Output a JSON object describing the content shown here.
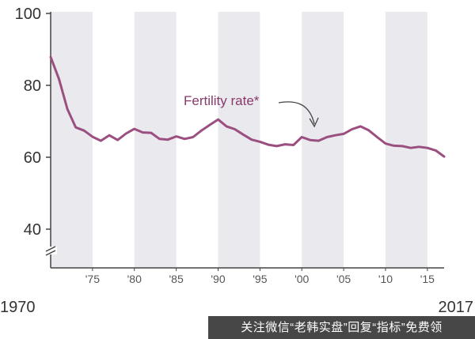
{
  "chart_data": {
    "type": "line",
    "title": "",
    "xlabel": "",
    "ylabel": "",
    "xlim": [
      1970,
      2017
    ],
    "ylim": [
      30,
      100
    ],
    "y_ticks": [
      40,
      60,
      80,
      100
    ],
    "x_ticks": [
      {
        "year": 1975,
        "label": "'75"
      },
      {
        "year": 1980,
        "label": "'80"
      },
      {
        "year": 1985,
        "label": "'85"
      },
      {
        "year": 1990,
        "label": "'90"
      },
      {
        "year": 1995,
        "label": "'95"
      },
      {
        "year": 2000,
        "label": "'00"
      },
      {
        "year": 2005,
        "label": "'05"
      },
      {
        "year": 2010,
        "label": "'10"
      },
      {
        "year": 2015,
        "label": "'15"
      }
    ],
    "x_end_labels": {
      "start": "1970",
      "end": "2017"
    },
    "shaded_bands": [
      [
        1970,
        1975
      ],
      [
        1980,
        1985
      ],
      [
        1990,
        1995
      ],
      [
        2000,
        2005
      ],
      [
        2010,
        2015
      ]
    ],
    "axis_break": true,
    "series": [
      {
        "name": "Fertility rate*",
        "color": "#9b4f80",
        "x": [
          1970,
          1971,
          1972,
          1973,
          1974,
          1975,
          1976,
          1977,
          1978,
          1979,
          1980,
          1981,
          1982,
          1983,
          1984,
          1985,
          1986,
          1987,
          1988,
          1989,
          1990,
          1991,
          1992,
          1993,
          1994,
          1995,
          1996,
          1997,
          1998,
          1999,
          2000,
          2001,
          2002,
          2003,
          2004,
          2005,
          2006,
          2007,
          2008,
          2009,
          2010,
          2011,
          2012,
          2013,
          2014,
          2015,
          2016,
          2017
        ],
        "values": [
          87.9,
          81.7,
          73.4,
          68.3,
          67.4,
          65.7,
          64.6,
          66.1,
          64.8,
          66.6,
          67.9,
          66.9,
          66.8,
          65.1,
          64.9,
          65.8,
          65.1,
          65.6,
          67.4,
          69.0,
          70.5,
          68.6,
          67.8,
          66.3,
          64.9,
          64.3,
          63.5,
          63.1,
          63.6,
          63.4,
          65.6,
          64.8,
          64.6,
          65.6,
          66.1,
          66.5,
          67.8,
          68.6,
          67.5,
          65.6,
          63.8,
          63.2,
          63.1,
          62.6,
          62.9,
          62.6,
          61.9,
          60.2
        ]
      }
    ],
    "annotation": {
      "text": "Fertility rate*",
      "target_year": 2001.5
    }
  },
  "watermark_text": "关注微信“老韩实盘”回复“指标”免费领"
}
